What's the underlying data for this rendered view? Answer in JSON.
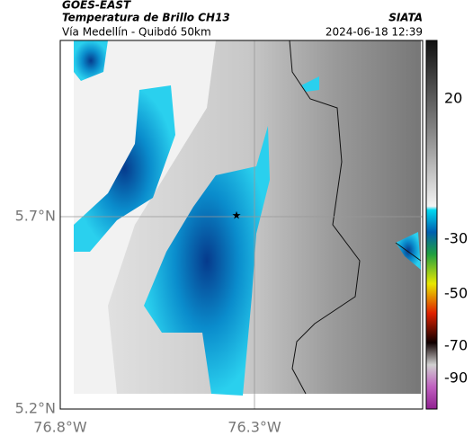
{
  "header": {
    "source": "GOES-EAST",
    "title": "Temperatura de Brillo CH13",
    "subtitle": "Vía Medellín - Quibdó 50km",
    "org": "SIATA",
    "datetime": "2024-06-18 12:39"
  },
  "map": {
    "xticks": [
      "76.8°W",
      "76.3°W"
    ],
    "yticks": [
      "5.7°N",
      "5.2°N"
    ]
  },
  "colorbar": {
    "ticks": [
      20,
      -30,
      -50,
      -70,
      -90
    ]
  }
}
